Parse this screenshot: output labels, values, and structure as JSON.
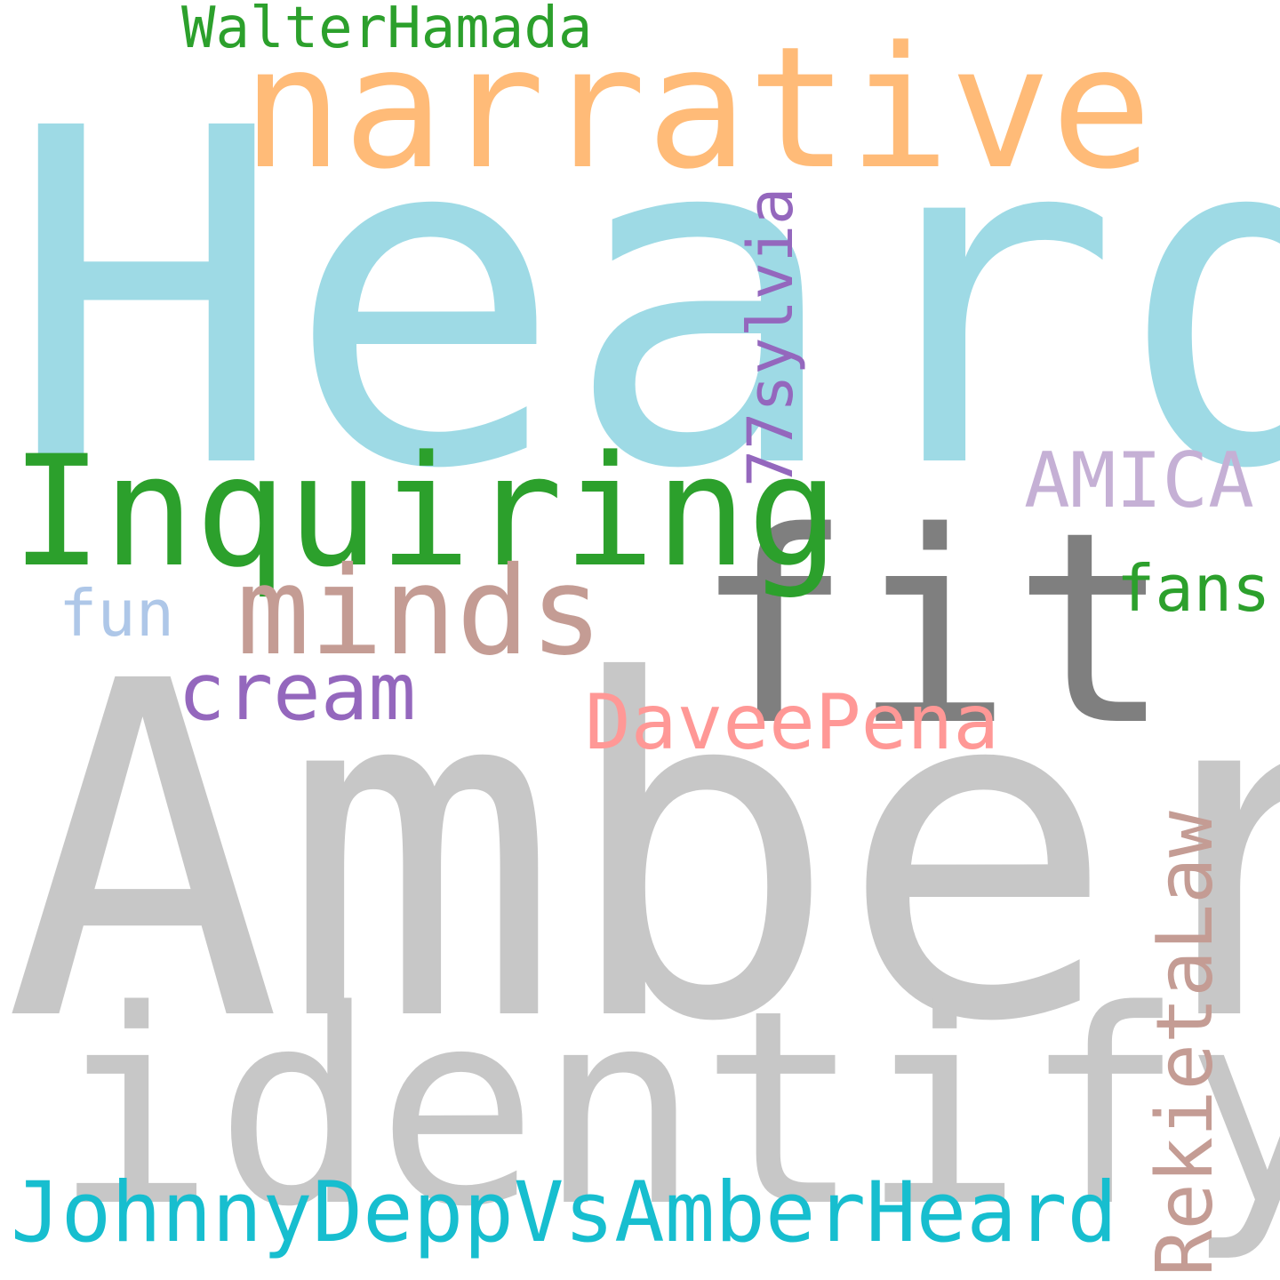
{
  "words": [
    {
      "id": "heard",
      "text": "Heard",
      "color": "#9edae5"
    },
    {
      "id": "amber",
      "text": "Amber",
      "color": "#c7c7c7"
    },
    {
      "id": "identify",
      "text": "identify",
      "color": "#c7c7c7"
    },
    {
      "id": "narrative",
      "text": "narrative",
      "color": "#ffbb78"
    },
    {
      "id": "fit",
      "text": "fit",
      "color": "#7f7f7f"
    },
    {
      "id": "inquiring",
      "text": "Inquiring",
      "color": "#2ca02c"
    },
    {
      "id": "minds",
      "text": "minds",
      "color": "#c49c94"
    },
    {
      "id": "johnnydeppvsamberheard",
      "text": "JohnnyDeppVsAmberHeard",
      "color": "#17becf"
    },
    {
      "id": "rekietalaw",
      "text": "RekietaLaw",
      "color": "#c49c94"
    },
    {
      "id": "daveepena",
      "text": "DaveePena",
      "color": "#ff9896"
    },
    {
      "id": "walterhamada",
      "text": "WalterHamada",
      "color": "#2ca02c"
    },
    {
      "id": "amica",
      "text": "AMICA",
      "color": "#c5b0d5"
    },
    {
      "id": "77sylvia",
      "text": "77sylvia",
      "color": "#9467bd"
    },
    {
      "id": "cream",
      "text": "cream",
      "color": "#9467bd"
    },
    {
      "id": "fans",
      "text": "fans",
      "color": "#2ca02c"
    },
    {
      "id": "fun",
      "text": "fun",
      "color": "#aec7e8"
    }
  ]
}
